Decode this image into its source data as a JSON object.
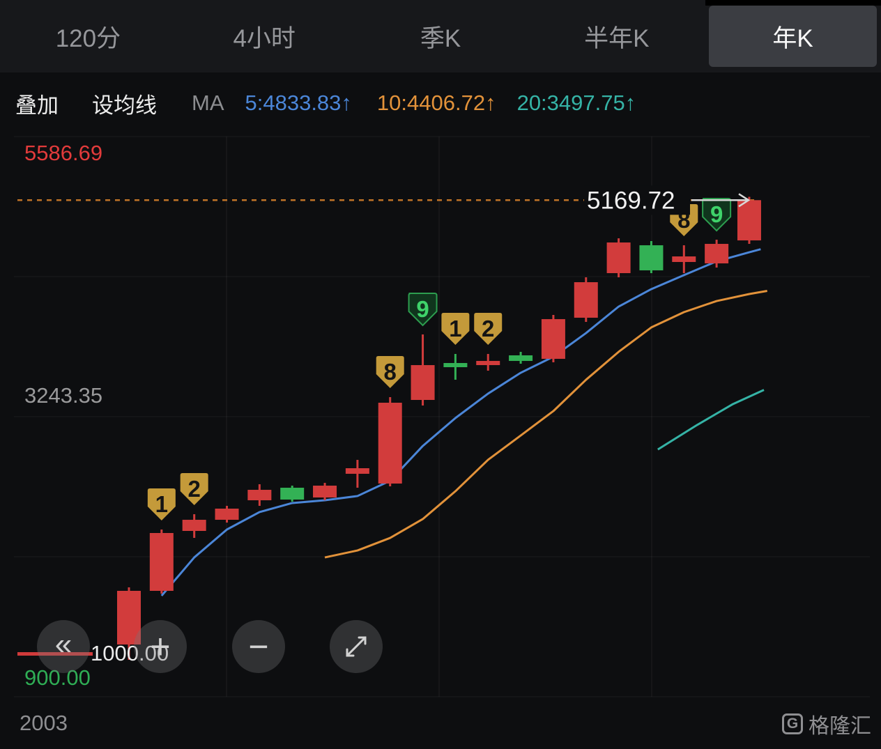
{
  "tabs": {
    "items": [
      {
        "label": "120分",
        "active": false
      },
      {
        "label": "4小时",
        "active": false
      },
      {
        "label": "季K",
        "active": false
      },
      {
        "label": "半年K",
        "active": false
      },
      {
        "label": "年K",
        "active": true
      }
    ]
  },
  "toolbar": {
    "overlay": "叠加",
    "ma_setting": "设均线",
    "ma_prefix": "MA",
    "ma5": "5:4833.83↑",
    "ma10": "10:4406.72↑",
    "ma20": "20:3497.75↑",
    "colors": {
      "ma5": "#4b86d8",
      "ma10": "#e2923a",
      "ma20": "#35b3a6"
    }
  },
  "axis": {
    "y_max": "5586.69",
    "y_mid": "3243.35",
    "y_base": "1000.00",
    "y_min": "900.00",
    "x_start": "2003"
  },
  "price_line": {
    "value": "5169.72",
    "price": 5169.72,
    "line_color": "#bf7328"
  },
  "controls": {
    "collapse_label": "«",
    "zoom_in_label": "+",
    "zoom_out_label": "−"
  },
  "watermark": {
    "brand": "格隆汇",
    "logo_letter": "G"
  },
  "chart_data": {
    "type": "candlestick",
    "timeframe": "年K",
    "x_first_label": "2003",
    "up_color": "#d23c3c",
    "down_color": "#33b155",
    "ma_colors": {
      "ma5": "#4b86d8",
      "ma10": "#e2923a",
      "ma20": "#35b3a6"
    },
    "y_axis_labels": {
      "max": 5586.69,
      "mid": 3243.35,
      "base": 1000.0,
      "min": 900.0
    },
    "current_price": 5169.72,
    "candles": [
      [
        1095.9,
        1619.8,
        955.4,
        1587.8
      ],
      [
        1587.8,
        2149.9,
        1562.2,
        2118.0
      ],
      [
        2137.2,
        2290.4,
        2073.3,
        2239.3
      ],
      [
        2239.3,
        2367.1,
        2213.7,
        2341.5
      ],
      [
        2418.2,
        2565.1,
        2367.1,
        2514.0
      ],
      [
        2533.2,
        2552.3,
        2405.4,
        2424.6
      ],
      [
        2443.7,
        2577.8,
        2418.2,
        2552.3
      ],
      [
        2660.9,
        2788.6,
        2533.2,
        2712.0
      ],
      [
        2571.4,
        3363.6,
        2545.9,
        3312.5
      ],
      [
        3338.0,
        3938.5,
        3286.9,
        3657.4
      ],
      [
        3676.6,
        3759.7,
        3523.3,
        3638.3
      ],
      [
        3657.4,
        3759.7,
        3606.3,
        3695.7
      ],
      [
        3746.9,
        3778.9,
        3670.2,
        3695.7
      ],
      [
        3714.9,
        4117.3,
        3683.0,
        4079.0
      ],
      [
        4091.8,
        4462.3,
        4053.4,
        4417.6
      ],
      [
        4500.6,
        4820.0,
        4462.3,
        4781.7
      ],
      [
        4756.1,
        4794.5,
        4500.6,
        4526.1
      ],
      [
        4602.8,
        4756.1,
        4500.6,
        4653.9
      ],
      [
        4590.0,
        4807.2,
        4551.7,
        4768.9
      ],
      [
        4800.8,
        5200.0,
        4768.9,
        5169.72
      ]
    ],
    "ma5": [
      [
        1,
        1543
      ],
      [
        2,
        1894
      ],
      [
        3,
        2150
      ],
      [
        4,
        2310
      ],
      [
        5,
        2393
      ],
      [
        6,
        2418
      ],
      [
        7,
        2457
      ],
      [
        8,
        2597
      ],
      [
        9,
        2916
      ],
      [
        10,
        3172
      ],
      [
        11,
        3396
      ],
      [
        12,
        3587
      ],
      [
        13,
        3734
      ],
      [
        14,
        3951
      ],
      [
        15,
        4194
      ],
      [
        16,
        4354
      ],
      [
        17,
        4482
      ],
      [
        18,
        4609
      ],
      [
        19,
        4692
      ],
      [
        19.35,
        4720
      ]
    ],
    "ma10": [
      [
        6,
        1894
      ],
      [
        7,
        1958
      ],
      [
        8,
        2073
      ],
      [
        9,
        2246
      ],
      [
        10,
        2501
      ],
      [
        11,
        2789
      ],
      [
        12,
        3012
      ],
      [
        13,
        3236
      ],
      [
        14,
        3523
      ],
      [
        15,
        3779
      ],
      [
        16,
        4003
      ],
      [
        17,
        4143
      ],
      [
        18,
        4245
      ],
      [
        19,
        4309
      ],
      [
        19.55,
        4338
      ]
    ],
    "ma20": [
      [
        16.2,
        2884
      ],
      [
        17.4,
        3108
      ],
      [
        18.5,
        3300
      ],
      [
        19.45,
        3430
      ]
    ],
    "badges": [
      [
        1,
        "1",
        "gold"
      ],
      [
        2,
        "2",
        "gold"
      ],
      [
        8,
        "8",
        "gold"
      ],
      [
        9,
        "9",
        "green"
      ],
      [
        10,
        "1",
        "gold"
      ],
      [
        11,
        "2",
        "gold"
      ],
      [
        17,
        "8",
        "gold"
      ],
      [
        18,
        "9",
        "green"
      ]
    ]
  }
}
